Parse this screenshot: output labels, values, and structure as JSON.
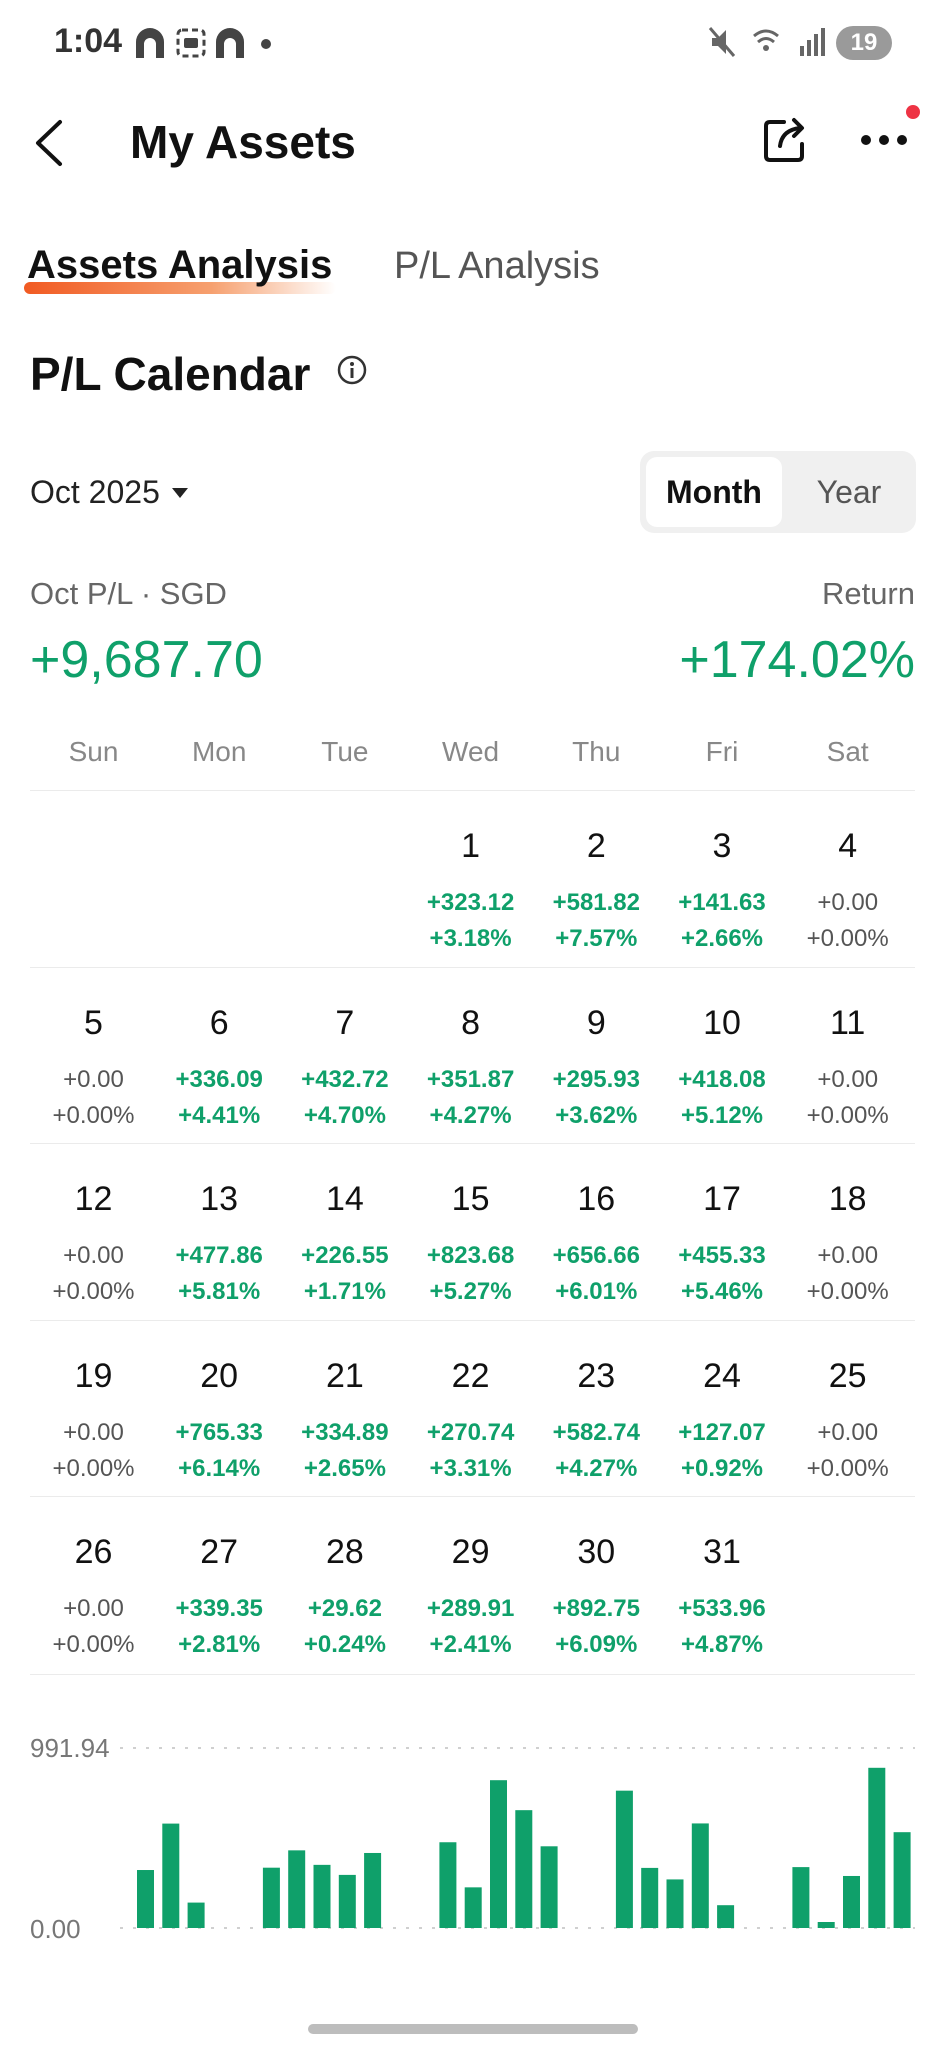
{
  "status_bar": {
    "time": "1:04",
    "battery": "19"
  },
  "header": {
    "title": "My Assets"
  },
  "tabs": [
    {
      "label": "Assets Analysis",
      "active": true
    },
    {
      "label": "P/L Analysis",
      "active": false
    }
  ],
  "section": {
    "title": "P/L Calendar",
    "month_selector": "Oct 2025",
    "view_toggle": [
      "Month",
      "Year"
    ],
    "selected_view": "Month"
  },
  "summary": {
    "pl_label": "Oct P/L · SGD",
    "pl_value": "+9,687.70",
    "return_label": "Return",
    "return_value": "+174.02%"
  },
  "colors": {
    "positive": "#0fa06a",
    "accent": "#f15a22",
    "neutral": "#555555"
  },
  "calendar": {
    "weekdays": [
      "Sun",
      "Mon",
      "Tue",
      "Wed",
      "Thu",
      "Fri",
      "Sat"
    ],
    "first_weekday_index": 3,
    "days": [
      {
        "day": "1",
        "pl": "+323.12",
        "pct": "+3.18%"
      },
      {
        "day": "2",
        "pl": "+581.82",
        "pct": "+7.57%"
      },
      {
        "day": "3",
        "pl": "+141.63",
        "pct": "+2.66%"
      },
      {
        "day": "4",
        "pl": "+0.00",
        "pct": "+0.00%"
      },
      {
        "day": "5",
        "pl": "+0.00",
        "pct": "+0.00%"
      },
      {
        "day": "6",
        "pl": "+336.09",
        "pct": "+4.41%"
      },
      {
        "day": "7",
        "pl": "+432.72",
        "pct": "+4.70%"
      },
      {
        "day": "8",
        "pl": "+351.87",
        "pct": "+4.27%"
      },
      {
        "day": "9",
        "pl": "+295.93",
        "pct": "+3.62%"
      },
      {
        "day": "10",
        "pl": "+418.08",
        "pct": "+5.12%"
      },
      {
        "day": "11",
        "pl": "+0.00",
        "pct": "+0.00%"
      },
      {
        "day": "12",
        "pl": "+0.00",
        "pct": "+0.00%"
      },
      {
        "day": "13",
        "pl": "+477.86",
        "pct": "+5.81%"
      },
      {
        "day": "14",
        "pl": "+226.55",
        "pct": "+1.71%"
      },
      {
        "day": "15",
        "pl": "+823.68",
        "pct": "+5.27%"
      },
      {
        "day": "16",
        "pl": "+656.66",
        "pct": "+6.01%"
      },
      {
        "day": "17",
        "pl": "+455.33",
        "pct": "+5.46%"
      },
      {
        "day": "18",
        "pl": "+0.00",
        "pct": "+0.00%"
      },
      {
        "day": "19",
        "pl": "+0.00",
        "pct": "+0.00%"
      },
      {
        "day": "20",
        "pl": "+765.33",
        "pct": "+6.14%"
      },
      {
        "day": "21",
        "pl": "+334.89",
        "pct": "+2.65%"
      },
      {
        "day": "22",
        "pl": "+270.74",
        "pct": "+3.31%"
      },
      {
        "day": "23",
        "pl": "+582.74",
        "pct": "+4.27%"
      },
      {
        "day": "24",
        "pl": "+127.07",
        "pct": "+0.92%"
      },
      {
        "day": "25",
        "pl": "+0.00",
        "pct": "+0.00%"
      },
      {
        "day": "26",
        "pl": "+0.00",
        "pct": "+0.00%"
      },
      {
        "day": "27",
        "pl": "+339.35",
        "pct": "+2.81%"
      },
      {
        "day": "28",
        "pl": "+29.62",
        "pct": "+0.24%"
      },
      {
        "day": "29",
        "pl": "+289.91",
        "pct": "+2.41%"
      },
      {
        "day": "30",
        "pl": "+892.75",
        "pct": "+6.09%"
      },
      {
        "day": "31",
        "pl": "+533.96",
        "pct": "+4.87%"
      }
    ]
  },
  "chart_data": {
    "type": "bar",
    "y_max_label": "991.94",
    "y_min_label": "0.00",
    "ylim": [
      0,
      991.94
    ],
    "values": [
      323.12,
      581.82,
      141.63,
      336.09,
      432.72,
      351.87,
      295.93,
      418.08,
      477.86,
      226.55,
      823.68,
      656.66,
      455.33,
      765.33,
      334.89,
      270.74,
      582.74,
      127.07,
      339.35,
      29.62,
      289.91,
      892.75,
      533.96
    ]
  }
}
